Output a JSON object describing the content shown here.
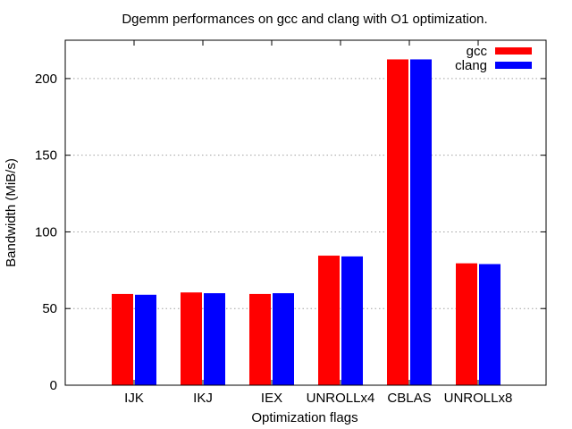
{
  "chart_data": {
    "type": "bar",
    "title": "Dgemm performances on gcc and clang with O1 optimization.",
    "xlabel": "Optimization flags",
    "ylabel": "Bandwidth (MiB/s)",
    "categories": [
      "IJK",
      "IKJ",
      "IEX",
      "UNROLLx4",
      "CBLAS",
      "UNROLLx8"
    ],
    "series": [
      {
        "name": "gcc",
        "color": "#ff0000",
        "values": [
          59.5,
          60.5,
          59.5,
          84.5,
          212.5,
          79.5
        ]
      },
      {
        "name": "clang",
        "color": "#0000ff",
        "values": [
          59,
          60,
          60,
          84,
          212.5,
          79
        ]
      }
    ],
    "ylim": [
      0,
      225
    ],
    "yticks": [
      0,
      50,
      100,
      150,
      200
    ],
    "grid": true,
    "legend_position": "top-right"
  }
}
